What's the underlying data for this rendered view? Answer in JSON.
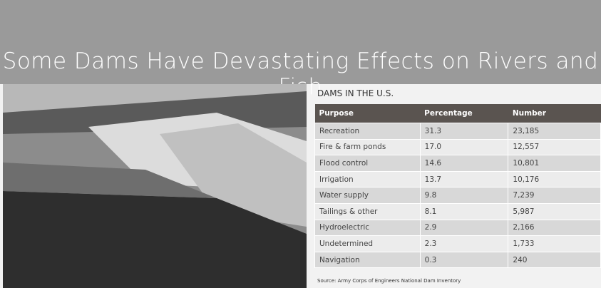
{
  "header": {
    "title": "Some Dams Have Devastating Effects on Rivers and Fish"
  },
  "table": {
    "title": "DAMS IN THE U.S.",
    "columns": [
      "Purpose",
      "Percentage",
      "Number"
    ],
    "rows": [
      [
        "Recreation",
        "31.3",
        "23,185"
      ],
      [
        "Fire & farm ponds",
        "17.0",
        "12,557"
      ],
      [
        "Flood control",
        "14.6",
        "10,801"
      ],
      [
        "Irrigation",
        "13.7",
        "10,176"
      ],
      [
        "Water supply",
        "9.8",
        "7,239"
      ],
      [
        "Tailings & other",
        "8.1",
        "5,987"
      ],
      [
        "Hydroelectric",
        "2.9",
        "2,166"
      ],
      [
        "Undetermined",
        "2.3",
        "1,733"
      ],
      [
        "Navigation",
        "0.3",
        "240"
      ]
    ],
    "source": "Source: Army Corps of Engineers National Dam Inventory"
  }
}
